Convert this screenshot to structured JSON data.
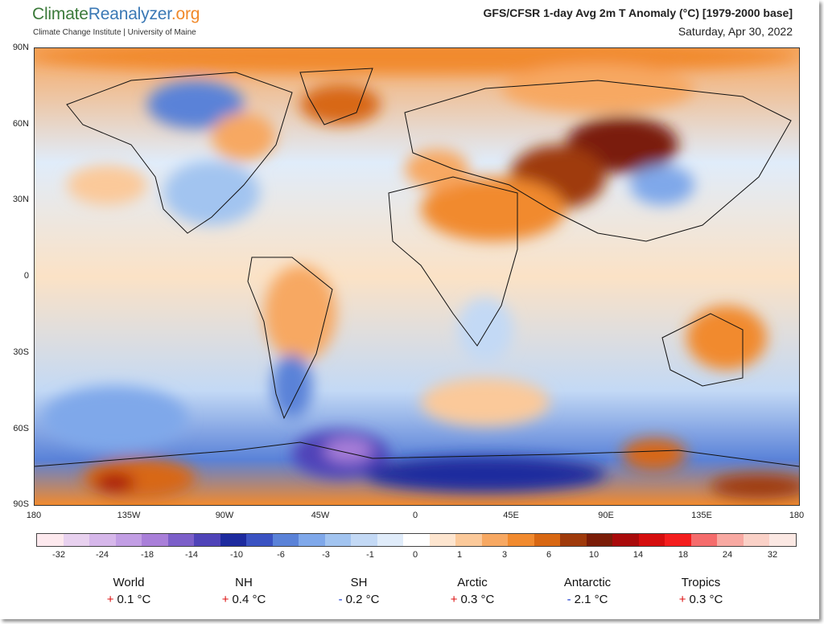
{
  "header": {
    "logo_part1": "Climate",
    "logo_part2": "Reanalyzer",
    "logo_part3": ".org",
    "subtitle": "Climate Change Institute | University of Maine",
    "title": "GFS/CFSR 1-day Avg 2m T Anomaly (°C) [1979-2000 base]",
    "date": "Saturday, Apr 30, 2022"
  },
  "map": {
    "lat_labels": [
      "90N",
      "60N",
      "30N",
      "0",
      "30S",
      "60S",
      "90S"
    ],
    "lon_labels": [
      "180",
      "135W",
      "90W",
      "45W",
      "0",
      "45E",
      "90E",
      "135E",
      "180"
    ]
  },
  "colorbar": {
    "colors": [
      "#fde9ee",
      "#e8d1ef",
      "#d6b7ea",
      "#c29ee4",
      "#a97fd9",
      "#7c5fc9",
      "#4f43b8",
      "#1d2a9e",
      "#3a52c2",
      "#5a82d8",
      "#7fa8ea",
      "#a2c4f0",
      "#c3d9f5",
      "#e0ecfa",
      "#ffffff",
      "#fde5cf",
      "#fbc99a",
      "#f7a862",
      "#f18a2e",
      "#d86712",
      "#9f3a0b",
      "#7a1c08",
      "#a90a0a",
      "#d50d0d",
      "#f41d1d",
      "#f56c6c",
      "#f8a9a2",
      "#fad1c7",
      "#fbe8e3"
    ],
    "ticks": [
      "-32",
      "-24",
      "-18",
      "-14",
      "-10",
      "-6",
      "-3",
      "-1",
      "0",
      "1",
      "3",
      "6",
      "10",
      "14",
      "18",
      "24",
      "32"
    ]
  },
  "stats": [
    {
      "name": "World",
      "sign": "+",
      "value": "0.1 °C"
    },
    {
      "name": "NH",
      "sign": "+",
      "value": "0.4 °C"
    },
    {
      "name": "SH",
      "sign": "-",
      "value": "0.2 °C"
    },
    {
      "name": "Arctic",
      "sign": "+",
      "value": "0.3 °C"
    },
    {
      "name": "Antarctic",
      "sign": "-",
      "value": "2.1 °C"
    },
    {
      "name": "Tropics",
      "sign": "+",
      "value": "0.3 °C"
    }
  ]
}
